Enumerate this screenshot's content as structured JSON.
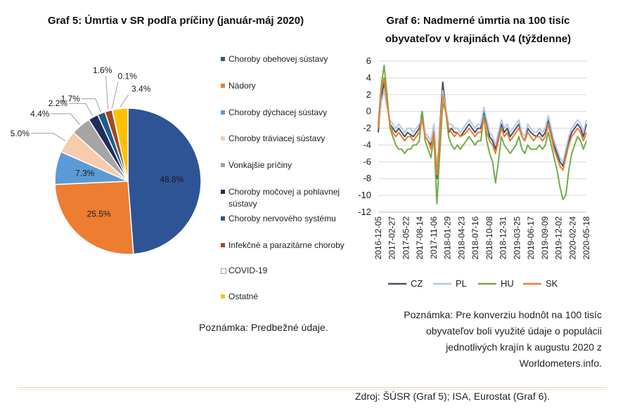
{
  "chart5": {
    "title": "Graf 5: Úmrtia v SR podľa príčiny (január-máj 2020)",
    "note": "Poznámka: Predbežné údaje."
  },
  "chart6": {
    "title_line1": "Graf 6: Nadmerné úmrtia na 100 tisíc",
    "title_line2": "obyvateľov v krajinách V4 (týždenne)",
    "note_lines": [
      "Poznámka: Pre konverziu hodnôt na 100 tisíc",
      "obyvateľov boli využité údaje o populácii",
      "jednotlivých krajín k augustu 2020 z",
      "Worldometers.info."
    ]
  },
  "source": "Zdroj: ŠÚSR (Graf 5); ISA, Eurostat (Graf 6).",
  "chart_data": [
    {
      "type": "pie",
      "title": "Graf 5: Úmrtia v SR podľa príčiny (január-máj 2020)",
      "start_angle": "12 o'clock",
      "direction": "clockwise",
      "legend_position": "right",
      "slices": [
        {
          "label": "Choroby obehovej sústavy",
          "value": 48.8,
          "value_label": "48.8%",
          "color": "#2f5496"
        },
        {
          "label": "Nádory",
          "value": 25.5,
          "value_label": "25.5%",
          "color": "#ed7d31"
        },
        {
          "label": "Choroby dýchacej sústavy",
          "value": 7.3,
          "value_label": "7.3%",
          "color": "#5b9bd5"
        },
        {
          "label": "Choroby tráviacej sústavy",
          "value": 5.0,
          "value_label": "5.0%",
          "color": "#f8cbad"
        },
        {
          "label": "Vonkajšie príčiny",
          "value": 4.4,
          "value_label": "4.4%",
          "color": "#a5a5a5"
        },
        {
          "label": "Choroby močovej a pohlavnej sústavy",
          "value": 2.2,
          "value_label": "2.2%",
          "color": "#1f2d5c"
        },
        {
          "label": "Choroby nervového systému",
          "value": 1.7,
          "value_label": "1.7%",
          "color": "#1f5c8c"
        },
        {
          "label": "Infekčné a parazitárne choroby",
          "value": 1.6,
          "value_label": "1.6%",
          "color": "#a5481c"
        },
        {
          "label": "COVID-19",
          "value": 0.1,
          "value_label": "0.1%",
          "color": "#ffffff"
        },
        {
          "label": "Ostatné",
          "value": 3.4,
          "value_label": "3.4%",
          "color": "#ffc000"
        }
      ]
    },
    {
      "type": "line",
      "title": "Graf 6: Nadmerné úmrtia na 100 tisíc obyvateľov v krajinách V4 (týždenne)",
      "ylim": [
        -12,
        6
      ],
      "yticks": [
        6,
        4,
        2,
        0,
        -2,
        -4,
        -6,
        -8,
        -10,
        -12
      ],
      "xticks": [
        "2016-12-05",
        "2017-02-27",
        "2017-05-22",
        "2017-08-14",
        "2017-11-06",
        "2018-01-29",
        "2018-04-23",
        "2018-07-16",
        "2018-10-08",
        "2018-12-31",
        "2019-03-25",
        "2019-06-17",
        "2019-09-09",
        "2019-12-02",
        "2020-02-24",
        "2020-05-18"
      ],
      "x_interval_weeks": 12,
      "grid": "horizontal",
      "legend_position": "bottom",
      "series": [
        {
          "name": "CZ",
          "color": "#44546a",
          "values": [
            -2.5,
            1.5,
            3.5,
            1.0,
            -1.5,
            -2.0,
            -2.5,
            -2.0,
            -2.5,
            -3.0,
            -2.5,
            -2.8,
            -3.0,
            -2.5,
            -2.0,
            0.0,
            -3.0,
            -3.5,
            -4.0,
            -2.0,
            -8.0,
            -2.0,
            3.5,
            0.5,
            -2.5,
            -2.0,
            -2.5,
            -2.5,
            -3.0,
            -2.5,
            -2.0,
            -1.5,
            -2.0,
            -2.5,
            -2.0,
            -2.0,
            0.0,
            -1.5,
            -3.0,
            -3.5,
            -4.5,
            -3.0,
            -1.5,
            -2.5,
            -2.0,
            -3.0,
            -2.5,
            -2.0,
            -1.5,
            -3.0,
            -3.5,
            -2.0,
            -2.5,
            -2.8,
            -3.0,
            -2.5,
            -3.0,
            -2.5,
            -1.0,
            -2.5,
            -4.0,
            -5.0,
            -6.0,
            -6.5,
            -5.0,
            -3.5,
            -2.5,
            -2.0,
            -1.5,
            -2.0,
            -3.0,
            -1.5
          ]
        },
        {
          "name": "PL",
          "color": "#b4c7e7",
          "values": [
            -2.0,
            1.0,
            2.5,
            0.5,
            -1.0,
            -1.5,
            -2.0,
            -1.5,
            -2.0,
            -2.5,
            -2.0,
            -2.0,
            -2.5,
            -2.0,
            -1.5,
            -0.5,
            -2.5,
            -3.0,
            -3.5,
            -1.5,
            -7.0,
            -2.5,
            2.5,
            0.5,
            -1.5,
            -1.5,
            -2.0,
            -2.0,
            -2.5,
            -2.0,
            -1.5,
            -1.0,
            -1.5,
            -2.0,
            -1.5,
            -1.5,
            0.5,
            -1.0,
            -2.5,
            -3.0,
            -4.0,
            -2.5,
            -1.0,
            -2.0,
            -1.5,
            -2.5,
            -2.0,
            -1.5,
            -1.0,
            -2.5,
            -3.0,
            -1.5,
            -2.0,
            -2.5,
            -2.5,
            -2.0,
            -2.5,
            -2.0,
            -0.5,
            -2.0,
            -3.5,
            -4.5,
            -5.5,
            -6.0,
            -4.5,
            -3.0,
            -2.0,
            -1.5,
            -1.0,
            -1.5,
            -2.5,
            -1.0
          ]
        },
        {
          "name": "HU",
          "color": "#70ad47",
          "values": [
            -1.5,
            3.0,
            5.5,
            2.0,
            -2.0,
            -3.0,
            -4.0,
            -4.5,
            -4.5,
            -5.0,
            -4.5,
            -4.5,
            -4.0,
            -4.0,
            -3.5,
            0.0,
            -3.5,
            -4.5,
            -5.5,
            -3.0,
            -11.0,
            -5.0,
            1.0,
            0.0,
            -3.0,
            -4.0,
            -4.5,
            -4.0,
            -4.5,
            -4.0,
            -3.5,
            -3.0,
            -3.5,
            -4.0,
            -3.5,
            -3.5,
            -0.5,
            -3.5,
            -5.0,
            -6.0,
            -8.5,
            -6.0,
            -3.0,
            -4.0,
            -4.5,
            -5.0,
            -4.5,
            -4.0,
            -3.0,
            -4.5,
            -5.0,
            -4.0,
            -4.5,
            -4.5,
            -4.5,
            -4.0,
            -4.5,
            -4.0,
            -2.5,
            -4.0,
            -5.5,
            -7.0,
            -9.0,
            -10.5,
            -10.0,
            -7.0,
            -5.0,
            -4.0,
            -3.0,
            -3.5,
            -4.5,
            -3.5
          ]
        },
        {
          "name": "SK",
          "color": "#ed7d31",
          "values": [
            -2.0,
            2.5,
            4.0,
            1.0,
            -1.5,
            -2.5,
            -3.0,
            -2.5,
            -3.0,
            -3.5,
            -3.0,
            -3.0,
            -3.5,
            -3.0,
            -2.5,
            -1.0,
            -3.0,
            -3.5,
            -4.5,
            -2.5,
            -7.5,
            -3.0,
            2.0,
            0.0,
            -2.0,
            -2.5,
            -3.0,
            -2.5,
            -3.0,
            -2.8,
            -2.5,
            -2.0,
            -2.5,
            -3.0,
            -2.5,
            -2.5,
            -1.0,
            -2.5,
            -3.5,
            -4.0,
            -5.0,
            -3.5,
            -2.0,
            -3.0,
            -2.5,
            -3.5,
            -3.0,
            -2.5,
            -2.0,
            -3.0,
            -3.5,
            -2.5,
            -3.0,
            -3.5,
            -3.0,
            -3.0,
            -3.5,
            -3.0,
            -1.5,
            -3.0,
            -4.5,
            -5.5,
            -6.5,
            -7.0,
            -5.5,
            -4.0,
            -3.0,
            -2.5,
            -2.0,
            -2.5,
            -3.5,
            -2.5
          ]
        }
      ]
    }
  ]
}
